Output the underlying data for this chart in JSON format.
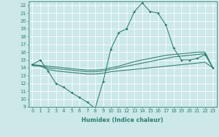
{
  "xlabel": "Humidex (Indice chaleur)",
  "xlim": [
    -0.5,
    23.5
  ],
  "ylim": [
    9,
    22.5
  ],
  "yticks": [
    9,
    10,
    11,
    12,
    13,
    14,
    15,
    16,
    17,
    18,
    19,
    20,
    21,
    22
  ],
  "xticks": [
    0,
    1,
    2,
    3,
    4,
    5,
    6,
    7,
    8,
    9,
    10,
    11,
    12,
    13,
    14,
    15,
    16,
    17,
    18,
    19,
    20,
    21,
    22,
    23
  ],
  "bg_color": "#cce8e8",
  "grid_color": "#ffffff",
  "line_color": "#2e7d6e",
  "line1_x": [
    0,
    1,
    2,
    3,
    4,
    5,
    6,
    7,
    8,
    9,
    10,
    11,
    12,
    13,
    14,
    15,
    16,
    17,
    18,
    19,
    20,
    21,
    22,
    23
  ],
  "line1_y": [
    14.4,
    15.0,
    13.6,
    12.0,
    11.5,
    10.8,
    10.2,
    9.6,
    8.8,
    12.2,
    16.4,
    18.5,
    19.0,
    21.2,
    22.3,
    21.2,
    21.0,
    19.5,
    16.5,
    15.0,
    15.0,
    15.2,
    15.7,
    14.0
  ],
  "line2_x": [
    0,
    1,
    2,
    3,
    4,
    5,
    6,
    7,
    8,
    9,
    10,
    11,
    12,
    13,
    14,
    15,
    16,
    17,
    18,
    19,
    20,
    21,
    22,
    23
  ],
  "line2_y": [
    14.3,
    14.2,
    14.0,
    13.9,
    13.8,
    13.7,
    13.6,
    13.5,
    13.5,
    13.6,
    13.8,
    14.0,
    14.2,
    14.4,
    14.6,
    14.8,
    15.0,
    15.2,
    15.4,
    15.5,
    15.6,
    15.7,
    15.8,
    14.0
  ],
  "line3_x": [
    0,
    1,
    2,
    3,
    4,
    5,
    6,
    7,
    8,
    9,
    10,
    11,
    12,
    13,
    14,
    15,
    16,
    17,
    18,
    19,
    20,
    21,
    22,
    23
  ],
  "line3_y": [
    14.4,
    14.3,
    14.2,
    14.1,
    14.0,
    13.9,
    13.8,
    13.7,
    13.7,
    13.8,
    14.0,
    14.2,
    14.5,
    14.8,
    15.0,
    15.2,
    15.4,
    15.6,
    15.7,
    15.8,
    15.9,
    16.0,
    16.0,
    14.0
  ],
  "line4_x": [
    0,
    1,
    2,
    3,
    4,
    5,
    6,
    7,
    8,
    9,
    10,
    11,
    12,
    13,
    14,
    15,
    16,
    17,
    18,
    19,
    20,
    21,
    22,
    23
  ],
  "line4_y": [
    14.3,
    14.2,
    13.8,
    13.6,
    13.5,
    13.4,
    13.3,
    13.2,
    13.2,
    13.3,
    13.5,
    13.6,
    13.7,
    13.8,
    13.9,
    14.0,
    14.1,
    14.2,
    14.3,
    14.4,
    14.5,
    14.6,
    14.7,
    14.0
  ],
  "xlabel_fontsize": 6.0,
  "tick_fontsize": 5.0
}
